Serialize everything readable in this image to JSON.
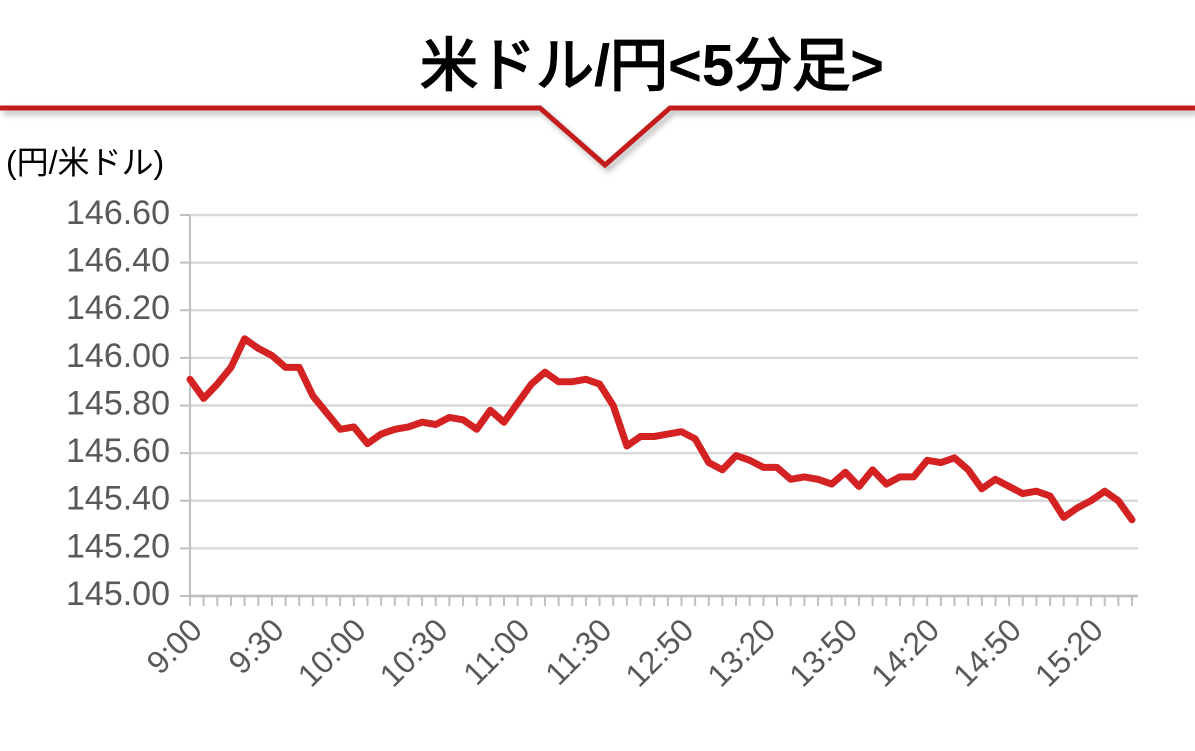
{
  "chart_data": {
    "type": "line",
    "title": "米ドル/円<5分足>",
    "y_label": "(円/米ドル)",
    "categories": [
      "9:00",
      null,
      null,
      null,
      null,
      null,
      "9:30",
      null,
      null,
      null,
      null,
      null,
      "10:00",
      null,
      null,
      null,
      null,
      null,
      "10:30",
      null,
      null,
      null,
      null,
      null,
      "11:00",
      null,
      null,
      null,
      null,
      null,
      "11:30",
      null,
      null,
      null,
      null,
      null,
      "12:50",
      null,
      null,
      null,
      null,
      null,
      "13:20",
      null,
      null,
      null,
      null,
      null,
      "13:50",
      null,
      null,
      null,
      null,
      null,
      "14:20",
      null,
      null,
      null,
      null,
      null,
      "14:50",
      null,
      null,
      null,
      null,
      null,
      "15:20",
      null,
      null,
      null
    ],
    "series": [
      {
        "name": "米ドル/円",
        "color": "#d42222",
        "values": [
          145.91,
          145.83,
          145.89,
          145.96,
          146.08,
          146.04,
          146.01,
          145.96,
          145.96,
          145.84,
          145.77,
          145.7,
          145.71,
          145.64,
          145.68,
          145.7,
          145.71,
          145.73,
          145.72,
          145.75,
          145.74,
          145.7,
          145.78,
          145.73,
          145.81,
          145.89,
          145.94,
          145.9,
          145.9,
          145.91,
          145.89,
          145.8,
          145.63,
          145.67,
          145.67,
          145.68,
          145.69,
          145.66,
          145.56,
          145.53,
          145.59,
          145.57,
          145.54,
          145.54,
          145.49,
          145.5,
          145.49,
          145.47,
          145.52,
          145.46,
          145.53,
          145.47,
          145.5,
          145.5,
          145.57,
          145.56,
          145.58,
          145.53,
          145.45,
          145.49,
          145.46,
          145.43,
          145.44,
          145.42,
          145.33,
          145.37,
          145.4,
          145.44,
          145.4,
          145.32
        ]
      }
    ],
    "ylim": [
      145.0,
      146.6
    ],
    "yticks": [
      {
        "value": 145.0,
        "label": "145.00"
      },
      {
        "value": 145.2,
        "label": "145.20"
      },
      {
        "value": 145.4,
        "label": "145.40"
      },
      {
        "value": 145.6,
        "label": "145.60"
      },
      {
        "value": 145.8,
        "label": "145.80"
      },
      {
        "value": 146.0,
        "label": "146.00"
      },
      {
        "value": 146.2,
        "label": "146.20"
      },
      {
        "value": 146.4,
        "label": "146.40"
      },
      {
        "value": 146.6,
        "label": "146.60"
      }
    ],
    "grid": true
  }
}
